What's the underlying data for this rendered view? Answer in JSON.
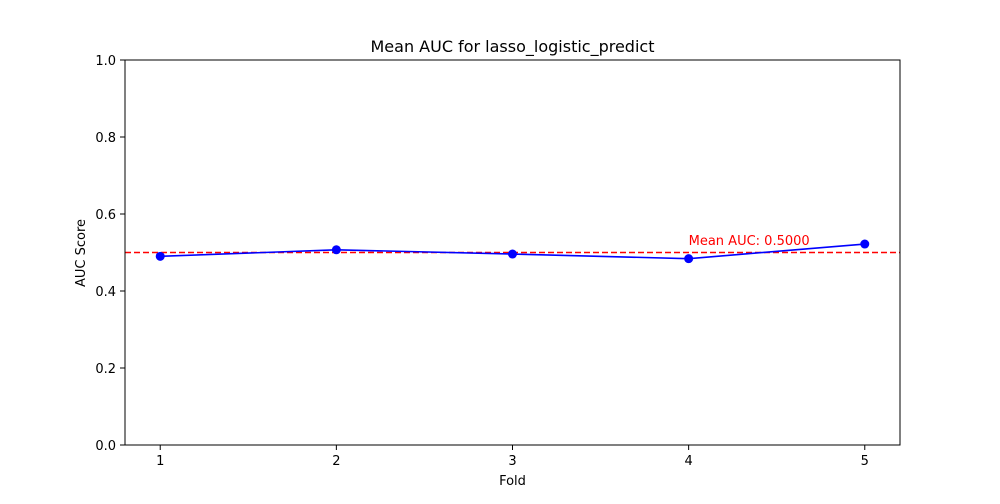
{
  "chart_data": {
    "type": "line",
    "title": "Mean AUC for lasso_logistic_predict",
    "xlabel": "Fold",
    "ylabel": "AUC Score",
    "x": [
      1,
      2,
      3,
      4,
      5
    ],
    "series": [
      {
        "values": [
          0.49,
          0.507,
          0.496,
          0.484,
          0.522
        ],
        "color": "#0000ff",
        "marker": "circle"
      }
    ],
    "xlim": [
      0.8,
      5.2
    ],
    "ylim": [
      0.0,
      1.0
    ],
    "xticks": [
      "1",
      "2",
      "3",
      "4",
      "5"
    ],
    "yticks": [
      "0.0",
      "0.2",
      "0.4",
      "0.6",
      "0.8",
      "1.0"
    ],
    "grid": false,
    "reference_line": {
      "value": 0.5,
      "color": "#ff0000",
      "style": "dashed"
    },
    "annotation": {
      "text": "Mean AUC: 0.5000",
      "x": 4,
      "y": 0.52,
      "color": "#ff0000"
    }
  }
}
